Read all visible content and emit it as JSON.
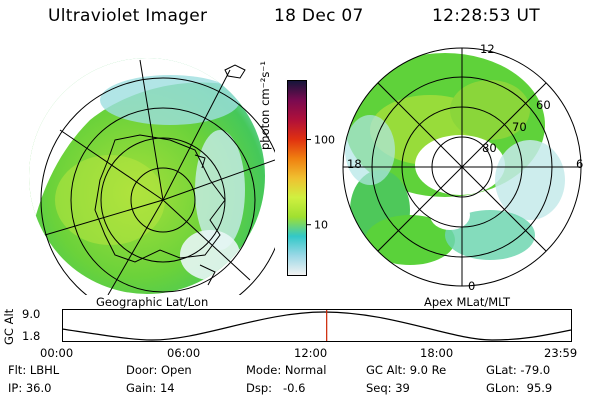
{
  "header": {
    "instrument": "Ultraviolet Imager",
    "date": "18 Dec 07",
    "time": "12:28:53 UT"
  },
  "left_panel": {
    "caption": "Geographic Lat/Lon"
  },
  "colorbar": {
    "unit_label": "photon cm⁻²s⁻¹",
    "scale": "log",
    "ticks": [
      {
        "value": 100,
        "label": "100"
      },
      {
        "value": 10,
        "label": "10"
      }
    ],
    "range": [
      2.5,
      500
    ],
    "colors": [
      "#f2f2f2",
      "#9ad8e6",
      "#32c8c8",
      "#a0e030",
      "#d0f040",
      "#f0c030",
      "#f08010",
      "#e03010",
      "#b0103a",
      "#7a0a50",
      "#15153a"
    ]
  },
  "right_panel": {
    "caption": "Apex MLat/MLT",
    "mlt_labels": {
      "top": "12",
      "left": "18",
      "right": "6",
      "bottom": "0"
    },
    "lat_labels": [
      "60",
      "70",
      "80"
    ]
  },
  "timeline": {
    "axis_title": "GC Alt",
    "y_ticks": [
      "9.0",
      "1.8"
    ],
    "x_ticks": [
      "00:00",
      "06:00",
      "12:00",
      "18:00",
      "23:59"
    ],
    "current_hours": 12.48
  },
  "footer": {
    "row1": [
      {
        "label": "Flt:",
        "value": "LBHL"
      },
      {
        "label": "Door:",
        "value": "Open"
      },
      {
        "label": "Mode:",
        "value": "Normal"
      },
      {
        "label": "GC Alt:",
        "value": "9.0 Re"
      },
      {
        "label": "GLat:",
        "value": "-79.0"
      }
    ],
    "row2": [
      {
        "label": "IP:",
        "value": "36.0"
      },
      {
        "label": "Gain:",
        "value": "14"
      },
      {
        "label": "Dsp:",
        "value": "-0.6"
      },
      {
        "label": "Seq:",
        "value": "39"
      },
      {
        "label": "GLon:",
        "value": "95.9"
      }
    ]
  },
  "colors": {
    "aurora_green": "#5ad23a",
    "aurora_cyan": "#6fd6d6",
    "marker_red": "#cc2200"
  }
}
